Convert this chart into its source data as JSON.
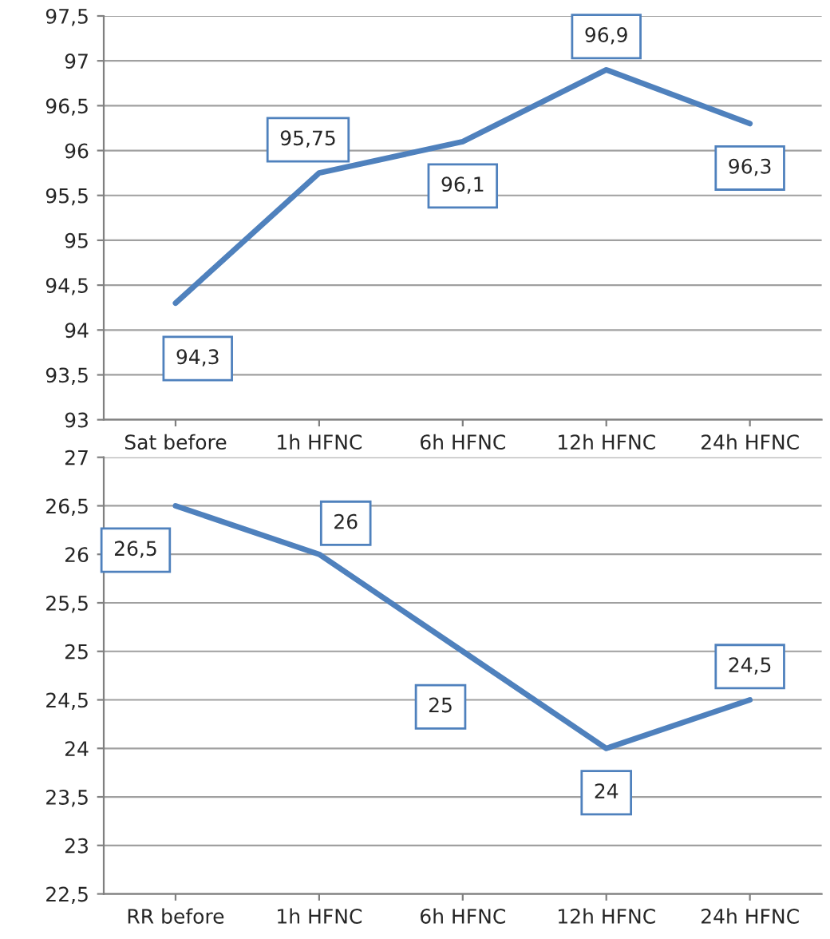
{
  "chart_data": [
    {
      "type": "line",
      "categories": [
        "Sat before",
        "1h HFNC",
        "6h HFNC",
        "12h HFNC",
        "24h HFNC"
      ],
      "series": [
        {
          "color": "#4f81bd",
          "values": [
            94.3,
            95.75,
            96.1,
            96.9,
            96.3
          ],
          "value_labels": [
            "94,3",
            "95,75",
            "96,1",
            "96,9",
            "96,3"
          ]
        }
      ],
      "ylim": [
        93,
        97.5
      ],
      "yticks": [
        93,
        {
          "value": 93.5,
          "label": "93,5"
        },
        94,
        {
          "value": 94.5,
          "label": "94,5"
        },
        95,
        {
          "value": 95.5,
          "label": "95,5"
        },
        96,
        {
          "value": 96.5,
          "label": "96,5"
        },
        97,
        {
          "value": 97.5,
          "label": "97,5"
        }
      ],
      "grid": "y",
      "marker": "none",
      "line_style": "solid"
    },
    {
      "type": "line",
      "categories": [
        "RR before",
        "1h HFNC",
        "6h HFNC",
        "12h HFNC",
        "24h HFNC"
      ],
      "series": [
        {
          "color": "#4f81bd",
          "values": [
            26.5,
            26,
            25,
            24,
            24.5
          ],
          "value_labels": [
            "26,5",
            "26",
            "25",
            "24",
            "24,5"
          ]
        }
      ],
      "ylim": [
        22.5,
        27
      ],
      "yticks": [
        {
          "value": 22.5,
          "label": "22,5"
        },
        23,
        {
          "value": 23.5,
          "label": "23,5"
        },
        24,
        {
          "value": 24.5,
          "label": "24,5"
        },
        25,
        {
          "value": 25.5,
          "label": "25,5"
        },
        26,
        {
          "value": 26.5,
          "label": "26,5"
        },
        27
      ],
      "grid": "y",
      "marker": "none",
      "line_style": "solid"
    }
  ]
}
